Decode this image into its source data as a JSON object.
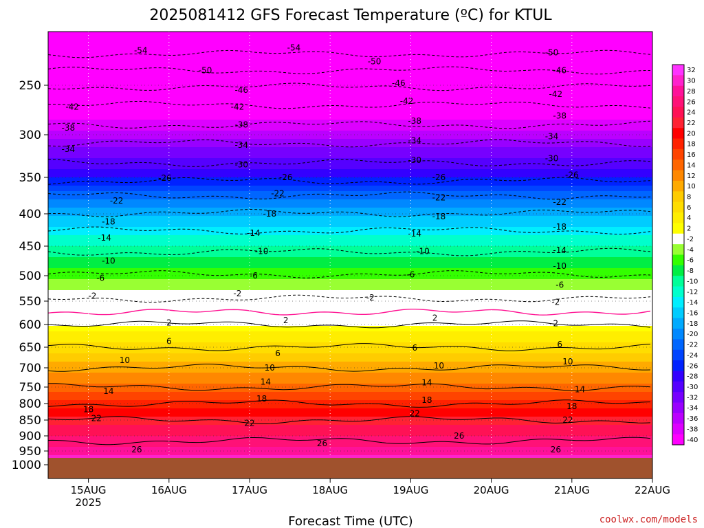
{
  "chart_data": {
    "type": "heatmap",
    "title": "2025081412 GFS Forecast Temperature (ºC) for KTUL",
    "xlabel": "Forecast Time (UTC)",
    "x_ticks": [
      {
        "label": "15AUG",
        "sub": "2025",
        "day": 1.0
      },
      {
        "label": "16AUG",
        "sub": "",
        "day": 2.0
      },
      {
        "label": "17AUG",
        "sub": "",
        "day": 3.0
      },
      {
        "label": "18AUG",
        "sub": "",
        "day": 4.0
      },
      {
        "label": "19AUG",
        "sub": "",
        "day": 5.0
      },
      {
        "label": "20AUG",
        "sub": "",
        "day": 6.0
      },
      {
        "label": "21AUG",
        "sub": "",
        "day": 7.0
      },
      {
        "label": "22AUG",
        "sub": "",
        "day": 8.0
      }
    ],
    "xlim_day": [
      0.5,
      8.0
    ],
    "y_pressure_ticks": [
      250,
      300,
      350,
      400,
      450,
      500,
      550,
      600,
      650,
      700,
      750,
      800,
      850,
      900,
      950,
      1000
    ],
    "ylim_pressure": [
      1025,
      200
    ],
    "surface_pressure": 975,
    "temperature_profile": [
      {
        "p": 210,
        "t": -56
      },
      {
        "p": 235,
        "t": -50
      },
      {
        "p": 260,
        "t": -44
      },
      {
        "p": 290,
        "t": -38
      },
      {
        "p": 315,
        "t": -33
      },
      {
        "p": 345,
        "t": -28
      },
      {
        "p": 375,
        "t": -22
      },
      {
        "p": 405,
        "t": -17
      },
      {
        "p": 440,
        "t": -12
      },
      {
        "p": 480,
        "t": -8
      },
      {
        "p": 515,
        "t": -4
      },
      {
        "p": 560,
        "t": -1
      },
      {
        "p": 600,
        "t": 2
      },
      {
        "p": 650,
        "t": 6
      },
      {
        "p": 700,
        "t": 10
      },
      {
        "p": 750,
        "t": 14
      },
      {
        "p": 800,
        "t": 18
      },
      {
        "p": 850,
        "t": 22
      },
      {
        "p": 900,
        "t": 25
      },
      {
        "p": 950,
        "t": 28
      },
      {
        "p": 975,
        "t": 30
      }
    ],
    "contour_labels": [
      {
        "v": "-54",
        "day": 1.65,
        "p": 215
      },
      {
        "v": "-54",
        "day": 3.55,
        "p": 212
      },
      {
        "v": "-50",
        "day": 4.55,
        "p": 226
      },
      {
        "v": "-50",
        "day": 6.75,
        "p": 217
      },
      {
        "v": "-50",
        "day": 2.45,
        "p": 235
      },
      {
        "v": "-46",
        "day": 6.85,
        "p": 235
      },
      {
        "v": "-46",
        "day": 2.9,
        "p": 255
      },
      {
        "v": "-46",
        "day": 4.85,
        "p": 248
      },
      {
        "v": "-42",
        "day": 0.8,
        "p": 272
      },
      {
        "v": "-42",
        "day": 2.85,
        "p": 272
      },
      {
        "v": "-42",
        "day": 4.95,
        "p": 266
      },
      {
        "v": "-42",
        "day": 6.8,
        "p": 259
      },
      {
        "v": "-38",
        "day": 0.75,
        "p": 293
      },
      {
        "v": "-38",
        "day": 2.9,
        "p": 290
      },
      {
        "v": "-38",
        "day": 5.05,
        "p": 286
      },
      {
        "v": "-38",
        "day": 6.85,
        "p": 281
      },
      {
        "v": "-34",
        "day": 0.75,
        "p": 317
      },
      {
        "v": "-34",
        "day": 2.9,
        "p": 312
      },
      {
        "v": "-34",
        "day": 5.05,
        "p": 307
      },
      {
        "v": "-34",
        "day": 6.75,
        "p": 302
      },
      {
        "v": "-30",
        "day": 2.9,
        "p": 335
      },
      {
        "v": "-30",
        "day": 5.05,
        "p": 330
      },
      {
        "v": "-30",
        "day": 6.75,
        "p": 328
      },
      {
        "v": "-26",
        "day": 1.95,
        "p": 351
      },
      {
        "v": "-26",
        "day": 3.45,
        "p": 350
      },
      {
        "v": "-26",
        "day": 5.35,
        "p": 350
      },
      {
        "v": "-26",
        "day": 7.0,
        "p": 347
      },
      {
        "v": "-22",
        "day": 1.35,
        "p": 382
      },
      {
        "v": "-22",
        "day": 3.35,
        "p": 372
      },
      {
        "v": "-22",
        "day": 5.35,
        "p": 378
      },
      {
        "v": "-22",
        "day": 6.85,
        "p": 384
      },
      {
        "v": "-18",
        "day": 1.25,
        "p": 412
      },
      {
        "v": "-18",
        "day": 3.25,
        "p": 400
      },
      {
        "v": "-18",
        "day": 5.35,
        "p": 404
      },
      {
        "v": "-18",
        "day": 6.85,
        "p": 420
      },
      {
        "v": "-14",
        "day": 1.2,
        "p": 437
      },
      {
        "v": "-14",
        "day": 3.05,
        "p": 430
      },
      {
        "v": "-14",
        "day": 5.05,
        "p": 431
      },
      {
        "v": "-14",
        "day": 6.85,
        "p": 457
      },
      {
        "v": "-10",
        "day": 1.25,
        "p": 475
      },
      {
        "v": "-10",
        "day": 3.15,
        "p": 459
      },
      {
        "v": "-10",
        "day": 5.15,
        "p": 459
      },
      {
        "v": "-10",
        "day": 6.85,
        "p": 484
      },
      {
        "v": "-6",
        "day": 1.15,
        "p": 505
      },
      {
        "v": "-6",
        "day": 3.05,
        "p": 500
      },
      {
        "v": "-6",
        "day": 5.0,
        "p": 498
      },
      {
        "v": "-6",
        "day": 6.85,
        "p": 518
      },
      {
        "v": "-2",
        "day": 1.05,
        "p": 540
      },
      {
        "v": "-2",
        "day": 2.85,
        "p": 535
      },
      {
        "v": "-2",
        "day": 4.5,
        "p": 543
      },
      {
        "v": "-2",
        "day": 6.8,
        "p": 552
      },
      {
        "v": "2",
        "day": 2.0,
        "p": 596
      },
      {
        "v": "2",
        "day": 3.45,
        "p": 591
      },
      {
        "v": "2",
        "day": 5.3,
        "p": 586
      },
      {
        "v": "2",
        "day": 6.8,
        "p": 598
      },
      {
        "v": "6",
        "day": 2.0,
        "p": 637
      },
      {
        "v": "6",
        "day": 3.35,
        "p": 665
      },
      {
        "v": "6",
        "day": 5.05,
        "p": 652
      },
      {
        "v": "6",
        "day": 6.85,
        "p": 644
      },
      {
        "v": "10",
        "day": 1.45,
        "p": 682
      },
      {
        "v": "10",
        "day": 3.25,
        "p": 700
      },
      {
        "v": "10",
        "day": 5.35,
        "p": 695
      },
      {
        "v": "10",
        "day": 6.95,
        "p": 685
      },
      {
        "v": "14",
        "day": 1.25,
        "p": 763
      },
      {
        "v": "14",
        "day": 3.2,
        "p": 737
      },
      {
        "v": "14",
        "day": 5.2,
        "p": 738
      },
      {
        "v": "14",
        "day": 7.1,
        "p": 757
      },
      {
        "v": "18",
        "day": 1.0,
        "p": 818
      },
      {
        "v": "18",
        "day": 3.15,
        "p": 785
      },
      {
        "v": "18",
        "day": 5.2,
        "p": 790
      },
      {
        "v": "18",
        "day": 7.0,
        "p": 808
      },
      {
        "v": "22",
        "day": 1.1,
        "p": 845
      },
      {
        "v": "22",
        "day": 3.0,
        "p": 860
      },
      {
        "v": "22",
        "day": 5.05,
        "p": 830
      },
      {
        "v": "22",
        "day": 6.95,
        "p": 850
      },
      {
        "v": "26",
        "day": 1.6,
        "p": 945
      },
      {
        "v": "26",
        "day": 3.9,
        "p": 925
      },
      {
        "v": "26",
        "day": 5.6,
        "p": 900
      },
      {
        "v": "26",
        "day": 6.8,
        "p": 945
      }
    ],
    "colorbar": {
      "labels": [
        "32",
        "30",
        "28",
        "26",
        "24",
        "22",
        "20",
        "18",
        "16",
        "14",
        "12",
        "10",
        "8",
        "6",
        "4",
        "2",
        "-2",
        "-4",
        "-6",
        "-8",
        "-10",
        "-12",
        "-14",
        "-16",
        "-18",
        "-20",
        "-22",
        "-24",
        "-26",
        "-28",
        "-30",
        "-32",
        "-34",
        "-36",
        "-38",
        "-40"
      ],
      "colors": [
        "#ff33ff",
        "#ff22cc",
        "#ff1199",
        "#ff1177",
        "#ff1155",
        "#ff2233",
        "#ff0000",
        "#ff2200",
        "#ff4400",
        "#ff6600",
        "#ff8800",
        "#ffaa00",
        "#ffcc00",
        "#ffdd00",
        "#ffee00",
        "#ffff00",
        "#ffffff",
        "#99ff33",
        "#33ff00",
        "#00ee44",
        "#00ff99",
        "#00ffcc",
        "#00eeff",
        "#00ccff",
        "#00aaff",
        "#0088ff",
        "#0066ff",
        "#0044ff",
        "#0022ff",
        "#3300ff",
        "#5500ff",
        "#7700ff",
        "#9900ff",
        "#bb00ff",
        "#dd00ff",
        "#ff00ff"
      ]
    }
  },
  "credit": "coolwx.com/models"
}
